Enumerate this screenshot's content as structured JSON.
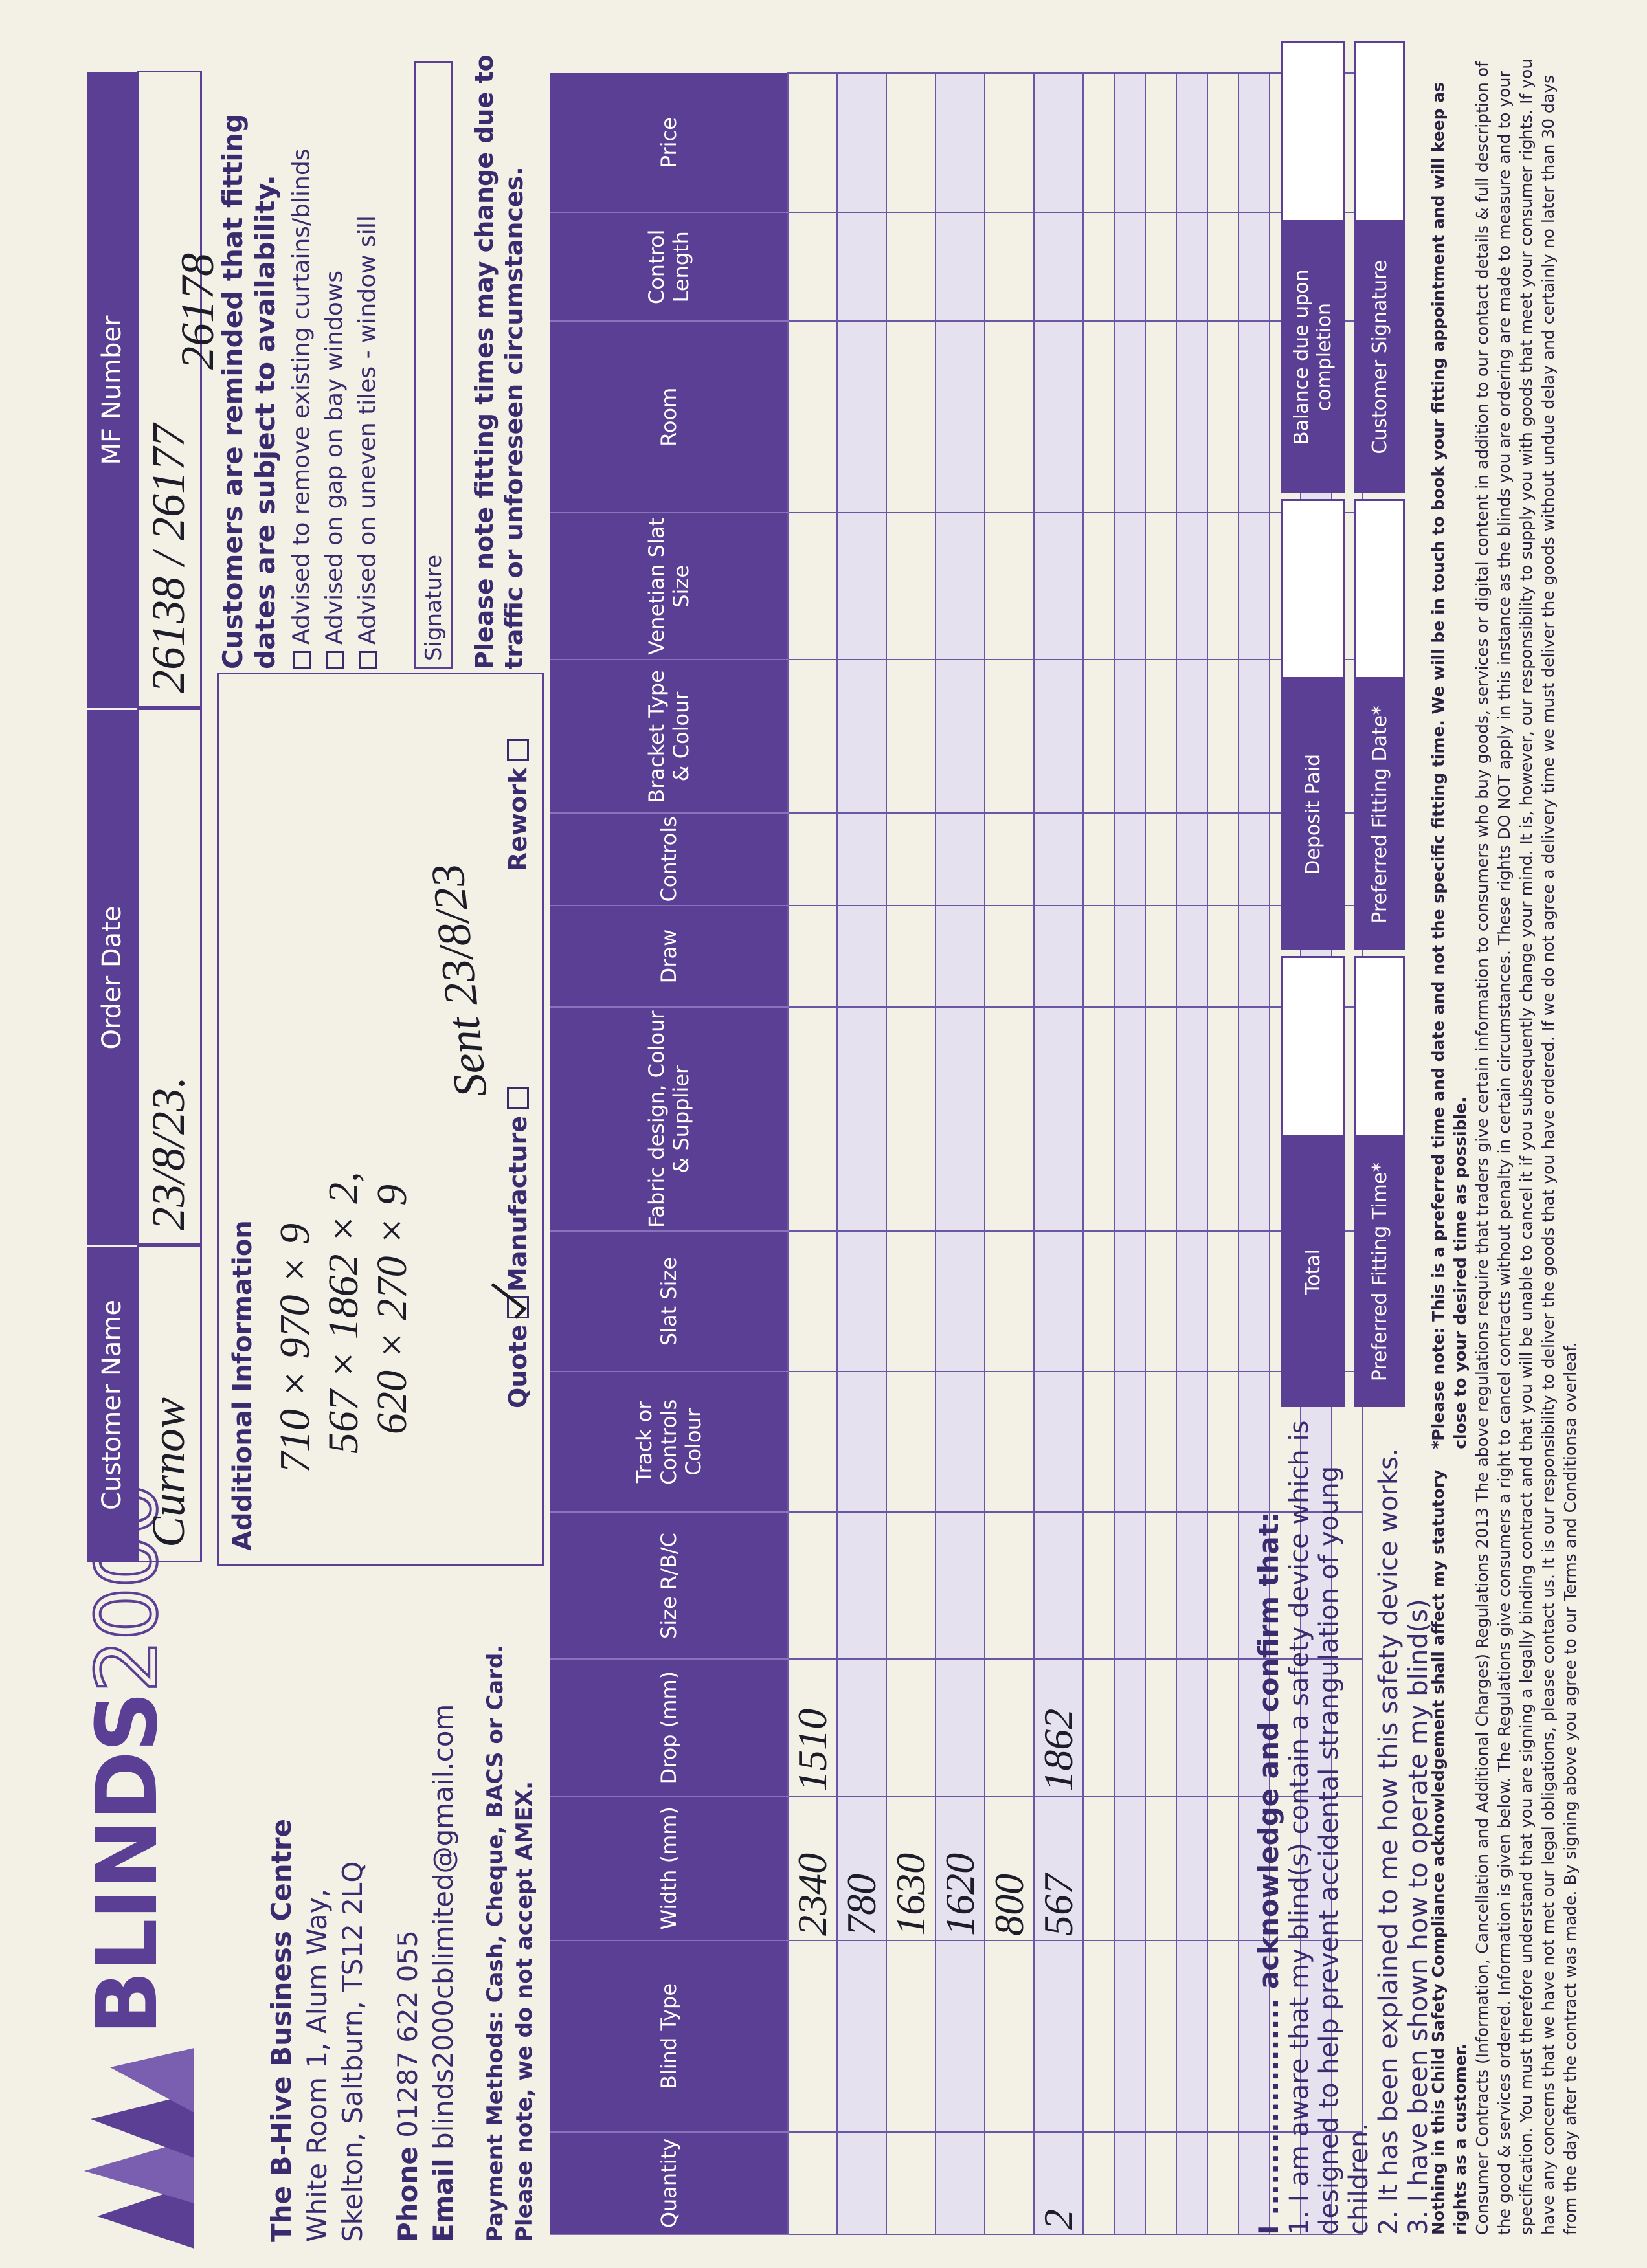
{
  "logo": {
    "brand": "BLINDS",
    "number": "2000"
  },
  "company": {
    "name": "The B-Hive Business Centre",
    "address": [
      "White Room 1, Alum Way,",
      "Skelton, Saltburn, TS12 2LQ"
    ],
    "phone_label": "Phone",
    "phone": "01287 622 055",
    "email_label": "Email",
    "email": "blinds2000cblimited@gmail.com"
  },
  "payment": [
    "Payment Methods: Cash, Cheque, BACS or Card.",
    "Please note, we do not accept AMEX."
  ],
  "fields": [
    {
      "label": "Customer Name",
      "value": [
        "Curnow"
      ]
    },
    {
      "label": "Order Date",
      "value": [
        "23/8/23."
      ]
    },
    {
      "label": "MF Number",
      "value": [
        "26138 / 26177",
        "26178"
      ]
    }
  ],
  "additional_info": {
    "title": "Additional Information",
    "notes": [
      "710 × 970 × 9",
      "567 × 1862 × 2,",
      "620 × 270 × 9"
    ],
    "options": [
      "Quote",
      "Manufacture",
      "Rework"
    ],
    "checked": [
      true,
      false,
      false
    ],
    "sent": "Sent 23/8/23"
  },
  "reminder": {
    "title": "Customers are reminded that fitting dates are subject to availability.",
    "items": [
      "Advised to remove existing curtains/blinds",
      "Advised on gap on bay windows",
      "Advised on uneven tiles - window sill"
    ],
    "signature": "Signature",
    "fitting_note": "Please note fitting times may change due to traffic or unforeseen circumstances."
  },
  "table": {
    "columns": [
      "Quantity",
      "Blind Type",
      "Width (mm)",
      "Drop (mm)",
      "Size R/B/C",
      "Track or Controls Colour",
      "Slat Size",
      "Fabric design, Colour & Supplier",
      "Draw",
      "Controls",
      "Bracket Type & Colour",
      "Venetian Slat Size",
      "Room",
      "Control Length",
      "Price"
    ],
    "rows": [
      {
        "width": "2340",
        "drop": "1510"
      },
      {
        "width": "780"
      },
      {
        "width": "1630"
      },
      {
        "width": "1620"
      },
      {
        "width": "800"
      },
      {
        "quantity": "2",
        "width": "567",
        "drop": "1862"
      }
    ]
  },
  "acknowledgement": {
    "heading": "I ..................... acknowledge and confirm that:",
    "items": [
      "1. I am aware that my blind(s) contain a safety device which is designed to help prevent accidental strangulation of young children.",
      "2. It has been explained to me how this safety device works.",
      "3. I have been shown how to operate my blind(s)"
    ]
  },
  "summary": [
    "Total",
    "Deposit Paid",
    "Balance due upon completion",
    "Preferred Fitting Time*",
    "Preferred Fitting Date*",
    "Customer Signature"
  ],
  "footer": {
    "statutory": "Nothing in this Child Safety Compliance acknowledgement shall affect my statutory rights as a customer.",
    "preferred_note": "*Please note: This is a preferred time and date and not the specific fitting time. We will be in touch to book your fitting appointment and will keep as close to your desired time as possible.",
    "regulations": "Consumer Contracts (Information, Cancellation and Additional Charges) Regulations 2013 The above regulations require that traders give certain information to consumers who buy goods, services or digital content in addition to our contact details & full description of the good & services ordered. Information is given below. The Regulations give consumers a right to cancel contracts without penalty in certain circumstances. These rights DO NOT apply in this instance as the blinds you are ordering are made to measure and to your specification. You must therefore understand that you are signing a legally binding contract and that you will be unable to cancel it if you subsequently change your mind. It is, however, our responsibility to supply you with goods that meet your consumer rights. If you have any concerns that we have not met our legal obligations, please contact us. It is our responsibility to deliver the goods that you have ordered. If we do not agree a delivery time we must deliver the goods without undue delay and certainly no later than 30 days from the day after the contract was made. By signing above you agree to our Terms and Conditionsa overleaf."
  }
}
